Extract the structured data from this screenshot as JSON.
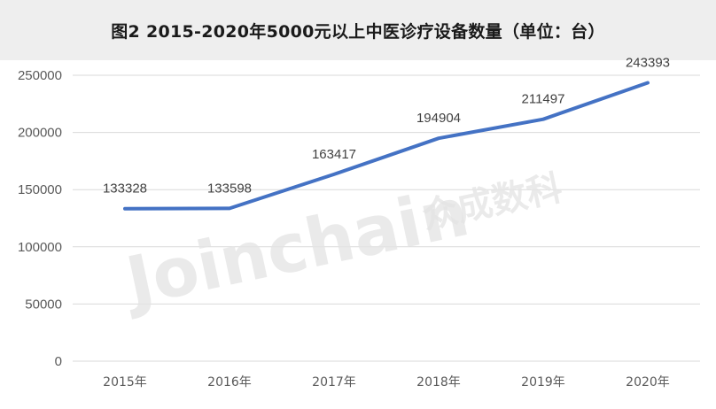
{
  "title": "图2    2015-2020年5000元以上中医诊疗设备数量（单位：台）",
  "watermark": {
    "latin": "Joinchain",
    "cjk": "众成数科"
  },
  "colors": {
    "line": "#4472c4",
    "grid": "#d9d9d9",
    "title_bg": "#eeeeee"
  },
  "chart_data": {
    "type": "line",
    "title": "图2    2015-2020年5000元以上中医诊疗设备数量（单位：台）",
    "categories": [
      "2015年",
      "2016年",
      "2017年",
      "2018年",
      "2019年",
      "2020年"
    ],
    "series": [
      {
        "values": [
          133328,
          133598,
          163417,
          194904,
          211497,
          243393
        ]
      }
    ],
    "data_labels": [
      "133328",
      "133598",
      "163417",
      "194904",
      "211497",
      "243393"
    ],
    "yticks": [
      0,
      50000,
      100000,
      150000,
      200000,
      250000
    ],
    "ytick_labels": [
      "0",
      "50000",
      "100000",
      "150000",
      "200000",
      "250000"
    ],
    "ylim": [
      0,
      250000
    ],
    "xlabel": "",
    "ylabel": "",
    "grid": true,
    "legend": "none"
  }
}
